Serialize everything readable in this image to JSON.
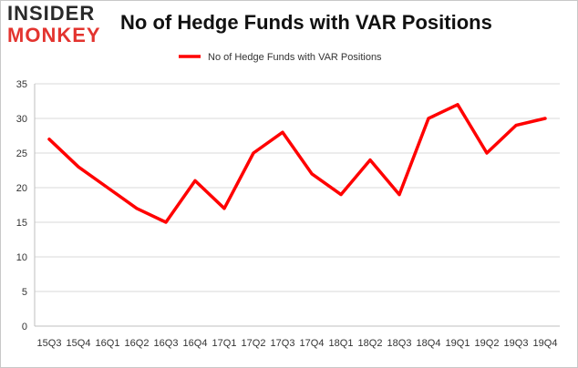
{
  "logo": {
    "line1": "INSIDER",
    "line2": "MONKEY"
  },
  "chart_data": {
    "type": "line",
    "title": "No of Hedge Funds with VAR Positions",
    "xlabel": "",
    "ylabel": "",
    "categories": [
      "15Q3",
      "15Q4",
      "16Q1",
      "16Q2",
      "16Q3",
      "16Q4",
      "17Q1",
      "17Q2",
      "17Q3",
      "17Q4",
      "18Q1",
      "18Q2",
      "18Q3",
      "18Q4",
      "19Q1",
      "19Q2",
      "19Q3",
      "19Q4"
    ],
    "series": [
      {
        "name": "No of Hedge Funds with VAR Positions",
        "values": [
          27,
          23,
          20,
          17,
          15,
          21,
          17,
          25,
          28,
          22,
          19,
          24,
          19,
          30,
          32,
          25,
          29,
          30
        ],
        "color": "#ff0000"
      }
    ],
    "ylim": [
      0,
      35
    ],
    "yticks": [
      0,
      5,
      10,
      15,
      20,
      25,
      30,
      35
    ],
    "grid": true,
    "legend_position": "top-center"
  }
}
